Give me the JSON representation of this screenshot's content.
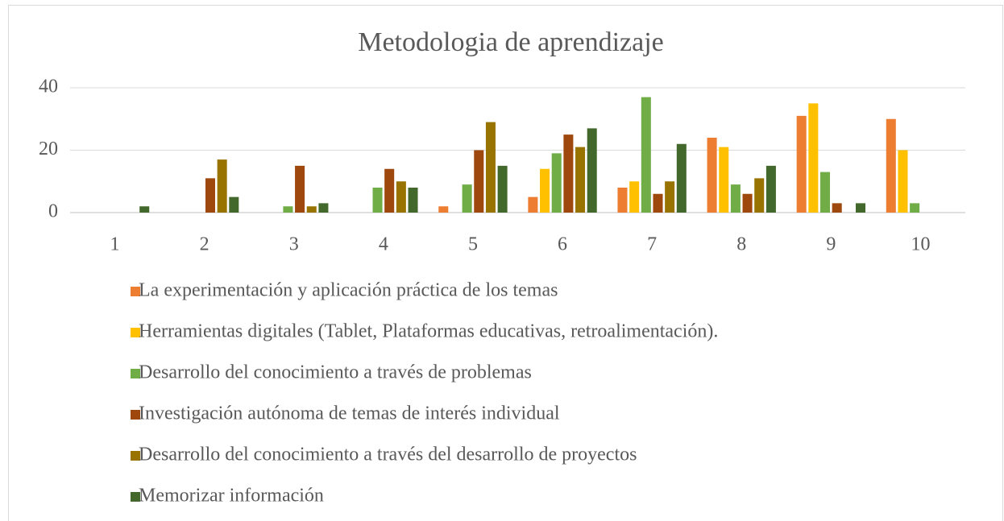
{
  "chart_data": {
    "type": "bar",
    "title": "Metodologia de aprendizaje",
    "categories": [
      "1",
      "2",
      "3",
      "4",
      "5",
      "6",
      "7",
      "8",
      "9",
      "10"
    ],
    "series": [
      {
        "name": "La experimentación y aplicación práctica de los temas",
        "color": "#ed7d31",
        "values": [
          0,
          0,
          0,
          0,
          2,
          5,
          8,
          24,
          31,
          30
        ]
      },
      {
        "name": "Herramientas digitales (Tablet, Plataformas educativas, retroalimentación).",
        "color": "#ffc000",
        "values": [
          0,
          0,
          0,
          0,
          0,
          14,
          10,
          21,
          35,
          20
        ]
      },
      {
        "name": "Desarrollo del conocimiento a través de problemas",
        "color": "#70ad47",
        "values": [
          0,
          0,
          2,
          8,
          9,
          19,
          37,
          9,
          13,
          3
        ]
      },
      {
        "name": "Investigación autónoma de temas de interés individual",
        "color": "#9e480e",
        "values": [
          0,
          11,
          15,
          14,
          20,
          25,
          6,
          6,
          3,
          0
        ]
      },
      {
        "name": "Desarrollo del conocimiento a través del desarrollo de proyectos",
        "color": "#997300",
        "values": [
          0,
          17,
          2,
          10,
          29,
          21,
          10,
          11,
          0,
          0
        ]
      },
      {
        "name": "Memorizar información",
        "color": "#43682b",
        "values": [
          2,
          5,
          3,
          8,
          15,
          27,
          22,
          15,
          3,
          0
        ]
      }
    ],
    "ylim": [
      0,
      40
    ],
    "yticks": [
      0,
      20,
      40
    ],
    "grid": true,
    "legend": "bottom"
  }
}
